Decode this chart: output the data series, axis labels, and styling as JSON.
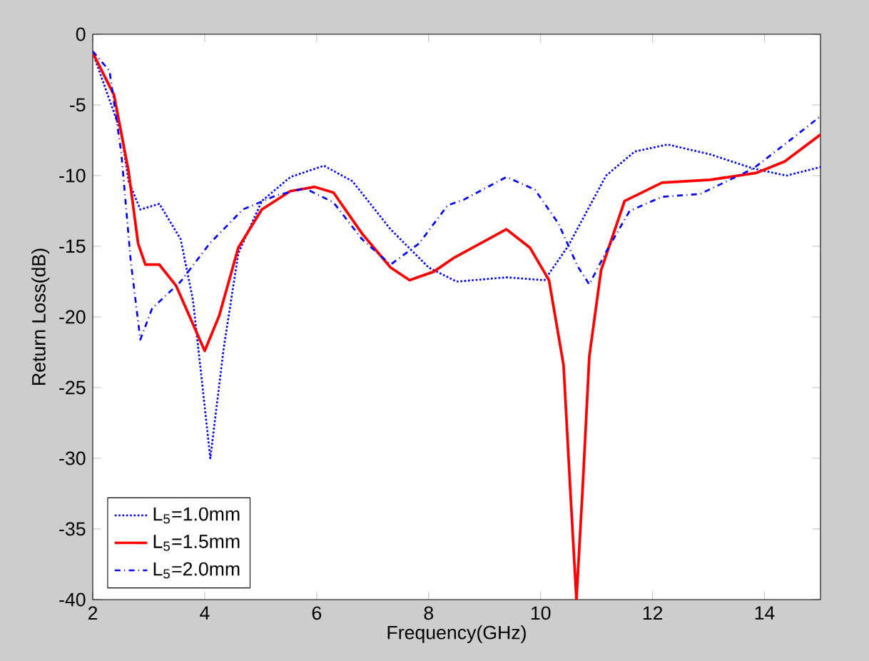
{
  "chart_data": {
    "type": "line",
    "xlabel": "Frequency(GHz)",
    "ylabel": "Return Loss(dB)",
    "xlim": [
      2,
      15
    ],
    "ylim": [
      -40,
      0
    ],
    "xticks": [
      2,
      4,
      6,
      8,
      10,
      12,
      14
    ],
    "yticks": [
      -40,
      -35,
      -30,
      -25,
      -20,
      -15,
      -10,
      -5,
      0
    ],
    "grid": false,
    "legend": "bottom left",
    "marker": "none",
    "series": [
      {
        "name": "L$_{5}$=1.0mm",
        "color": "#0000ff",
        "line_style": "dotted",
        "x": [
          2,
          2.51,
          2.64,
          2.85,
          3.19,
          3.57,
          3.79,
          3.96,
          4.1,
          4.34,
          4.6,
          5.02,
          5.53,
          6.13,
          6.64,
          7.32,
          8.0,
          8.5,
          9.39,
          10.07,
          10.49,
          11.17,
          11.68,
          12.27,
          13.03,
          13.8,
          14.39,
          15
        ],
        "values": [
          -1.3,
          -7,
          -10.4,
          -12.4,
          -12,
          -14.5,
          -18.8,
          -24.9,
          -30,
          -22.2,
          -15.5,
          -11.8,
          -10.1,
          -9.3,
          -10.4,
          -13.8,
          -16.5,
          -17.5,
          -17.2,
          -17.4,
          -15,
          -10,
          -8.3,
          -7.8,
          -8.5,
          -9.5,
          -10,
          -9.4
        ]
      },
      {
        "name": "L$_{5}$=1.5mm",
        "color": "#ff0000",
        "line_style": "solid",
        "x": [
          2,
          2.38,
          2.64,
          2.81,
          2.94,
          3.19,
          3.49,
          3.79,
          4.0,
          4.26,
          4.6,
          5.02,
          5.53,
          5.96,
          6.3,
          6.81,
          7.32,
          7.66,
          8.09,
          8.46,
          9.39,
          9.81,
          10.15,
          10.41,
          10.53,
          10.64,
          10.75,
          10.87,
          11.08,
          11.5,
          12.17,
          13.03,
          13.86,
          14.36,
          15
        ],
        "values": [
          -1.3,
          -4.3,
          -9.7,
          -14.8,
          -16.3,
          -16.3,
          -17.8,
          -20.5,
          -22.4,
          -19.9,
          -15.1,
          -12.4,
          -11.1,
          -10.8,
          -11.2,
          -14.1,
          -16.5,
          -17.4,
          -16.8,
          -15.8,
          -13.8,
          -15.1,
          -17.4,
          -23.4,
          -32.2,
          -40,
          -32.2,
          -22.8,
          -16.7,
          -11.8,
          -10.5,
          -10.3,
          -9.8,
          -9,
          -7.1
        ]
      },
      {
        "name": "L$_{5}$=2.0mm",
        "color": "#0000ff",
        "line_style": "dashdot",
        "x": [
          2,
          2.3,
          2.51,
          2.68,
          2.85,
          3.06,
          3.57,
          4.09,
          4.68,
          5.28,
          5.79,
          6.3,
          6.81,
          7.32,
          7.83,
          8.34,
          8.63,
          9.39,
          9.9,
          10.32,
          10.66,
          10.87,
          11.17,
          11.59,
          12.17,
          12.85,
          13.8,
          14.39,
          15
        ],
        "values": [
          -1.2,
          -2.6,
          -8.4,
          -16.1,
          -21.6,
          -19.4,
          -17.5,
          -14.8,
          -12.4,
          -11.4,
          -10.9,
          -11.9,
          -14.5,
          -16.3,
          -14.8,
          -12.1,
          -11.7,
          -10.1,
          -11,
          -13.4,
          -16.4,
          -17.7,
          -15.4,
          -12.5,
          -11.5,
          -11.3,
          -9.5,
          -7.7,
          -5.8
        ]
      }
    ]
  }
}
